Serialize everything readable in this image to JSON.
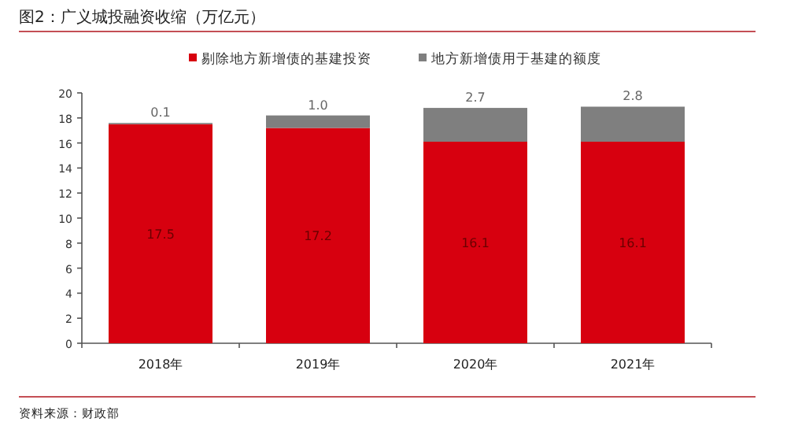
{
  "chart_data": {
    "type": "bar",
    "title": "图2：广义城投融资收缩（万亿元）",
    "categories": [
      "2018年",
      "2019年",
      "2020年",
      "2021年"
    ],
    "stacked": true,
    "series": [
      {
        "name": "剔除地方新增债的基建投资",
        "color": "#d7000f",
        "values": [
          17.5,
          17.2,
          16.1,
          16.1
        ],
        "value_labels": [
          "17.5",
          "17.2",
          "16.1",
          "16.1"
        ]
      },
      {
        "name": "地方新增债用于基建的额度",
        "color": "#7f7f7f",
        "values": [
          0.1,
          1.0,
          2.7,
          2.8
        ],
        "value_labels": [
          "0.1",
          "1.0",
          "2.7",
          "2.8"
        ]
      }
    ],
    "ylim": [
      0,
      20
    ],
    "yticks": [
      0,
      2,
      4,
      6,
      8,
      10,
      12,
      14,
      16,
      18,
      20
    ],
    "legend": "top",
    "annotations": [
      "资料来源：财政部"
    ]
  }
}
